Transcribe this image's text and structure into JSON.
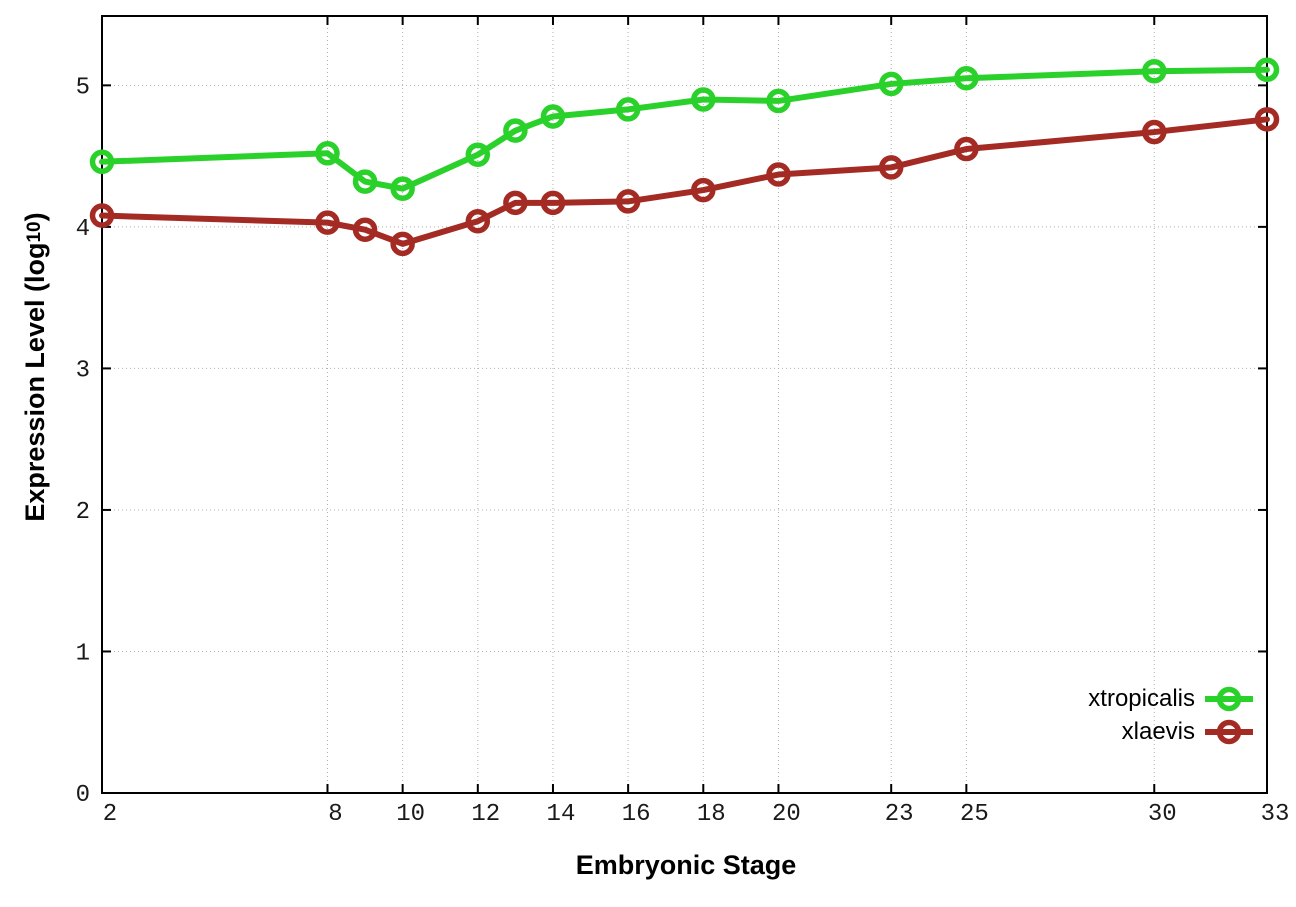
{
  "figure": {
    "background": "#ffffff",
    "axis_color": "#000000",
    "grid_color": "#b0b0b0",
    "tick_label_color": "#1a1a1a"
  },
  "chart_data": {
    "type": "line",
    "title": "",
    "xlabel": "Embryonic Stage",
    "ylabel": "Expression Level (log10)",
    "ylabel_main": "Expression Level (log",
    "ylabel_sub": "10",
    "ylabel_close": ")",
    "xlim": [
      2,
      33
    ],
    "ylim": [
      0,
      5.49
    ],
    "xticks": [
      2,
      8,
      10,
      12,
      14,
      16,
      18,
      20,
      23,
      25,
      30,
      33
    ],
    "yticks": [
      0,
      1,
      2,
      3,
      4,
      5
    ],
    "grid": true,
    "legend_position": "inside-bottom-right",
    "x": [
      2,
      8,
      9,
      10,
      12,
      13,
      14,
      16,
      18,
      20,
      23,
      25,
      30,
      33
    ],
    "series": [
      {
        "name": "xtropicalis",
        "color": "#2bd12b",
        "marker": "open-circle",
        "values": [
          4.46,
          4.52,
          4.32,
          4.27,
          4.51,
          4.68,
          4.78,
          4.83,
          4.9,
          4.89,
          5.01,
          5.05,
          5.1,
          5.11
        ]
      },
      {
        "name": "xlaevis",
        "color": "#a42b24",
        "marker": "open-circle",
        "values": [
          4.08,
          4.03,
          3.98,
          3.88,
          4.04,
          4.17,
          4.17,
          4.18,
          4.26,
          4.37,
          4.42,
          4.55,
          4.67,
          4.76
        ]
      }
    ]
  }
}
